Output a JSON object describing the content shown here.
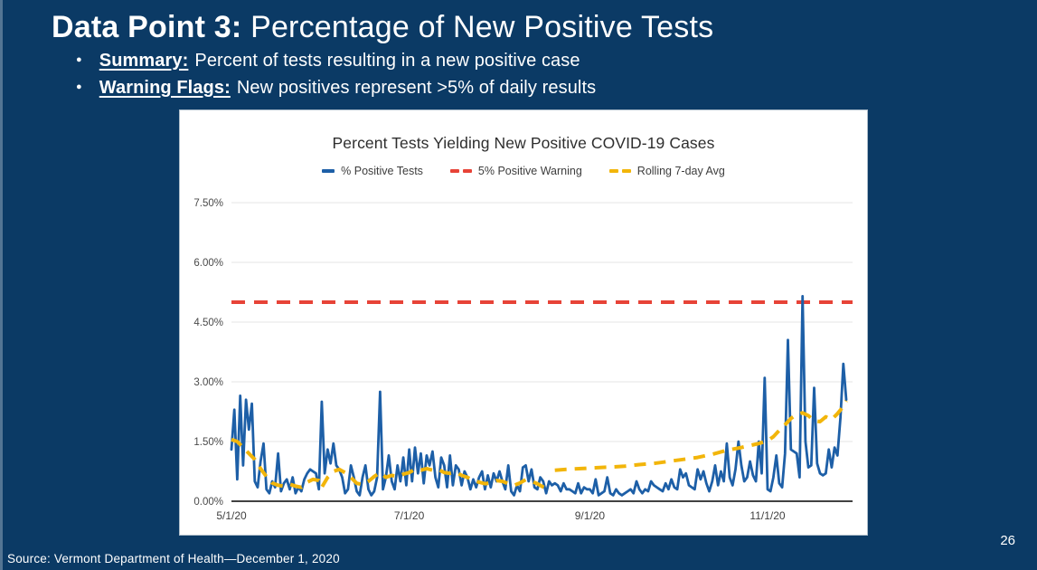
{
  "slide": {
    "title_bold": "Data Point 3:",
    "title_rest": "Percentage of New Positive Tests",
    "bullets": [
      {
        "lead": "Summary:",
        "text": "Percent of tests resulting in a new positive case"
      },
      {
        "lead": "Warning Flags:",
        "text": "New positives represent >5% of daily results"
      }
    ],
    "source": "Source: Vermont Department of Health—December 1, 2020",
    "page_number": "26",
    "background_color": "#0b3a65"
  },
  "chart_data": {
    "type": "line",
    "title": "Percent Tests Yielding New Positive COVID-19 Cases",
    "legend": [
      {
        "label": "% Positive Tests",
        "color": "#1d5fa7",
        "style": "solid"
      },
      {
        "label": "5% Positive Warning",
        "color": "#e74337",
        "style": "dashed"
      },
      {
        "label": "Rolling 7-day Avg",
        "color": "#f2b50a",
        "style": "dashed"
      }
    ],
    "ylim": [
      0,
      7.5
    ],
    "warning_level": 5.0,
    "y_ticks": [
      {
        "value": 0.0,
        "label": "0.00%"
      },
      {
        "value": 1.5,
        "label": "1.50%"
      },
      {
        "value": 3.0,
        "label": "3.00%"
      },
      {
        "value": 4.5,
        "label": "4.50%"
      },
      {
        "value": 6.0,
        "label": "6.00%"
      },
      {
        "value": 7.5,
        "label": "7.50%"
      }
    ],
    "x_ticks": [
      {
        "day": 0,
        "label": "5/1/20"
      },
      {
        "day": 61,
        "label": "7/1/20"
      },
      {
        "day": 123,
        "label": "9/1/20"
      },
      {
        "day": 184,
        "label": "11/1/20"
      }
    ],
    "x_start_date": "5/1/20",
    "x_end_date": "11/28/20",
    "daily_percent_positive": [
      1.3,
      2.3,
      0.55,
      2.65,
      0.9,
      2.55,
      1.8,
      2.45,
      0.5,
      0.35,
      1.0,
      1.45,
      0.3,
      0.2,
      0.5,
      0.35,
      1.2,
      0.25,
      0.45,
      0.55,
      0.3,
      0.6,
      0.2,
      0.35,
      0.25,
      0.55,
      0.7,
      0.8,
      0.75,
      0.7,
      0.3,
      2.5,
      0.7,
      1.3,
      0.95,
      1.45,
      0.9,
      0.8,
      0.6,
      0.2,
      0.3,
      0.9,
      0.6,
      0.25,
      0.15,
      0.6,
      0.9,
      0.3,
      0.15,
      0.25,
      0.6,
      2.75,
      0.3,
      0.6,
      1.15,
      0.5,
      0.3,
      0.9,
      0.5,
      1.1,
      0.4,
      1.3,
      0.5,
      1.35,
      0.7,
      1.2,
      0.45,
      1.15,
      0.9,
      1.25,
      0.6,
      0.35,
      1.1,
      0.9,
      0.35,
      1.15,
      0.4,
      0.9,
      0.8,
      0.4,
      0.75,
      0.6,
      0.3,
      0.55,
      0.35,
      0.6,
      0.75,
      0.3,
      0.65,
      0.35,
      0.7,
      0.5,
      0.75,
      0.5,
      0.3,
      0.9,
      0.25,
      0.15,
      0.4,
      0.25,
      0.85,
      0.9,
      0.5,
      0.8,
      0.35,
      0.3,
      0.6,
      0.5,
      0.2,
      0.5,
      0.4,
      0.45,
      0.4,
      0.25,
      0.45,
      0.3,
      0.3,
      0.25,
      0.2,
      0.45,
      0.2,
      0.35,
      0.3,
      0.3,
      0.2,
      0.55,
      0.15,
      0.2,
      0.25,
      0.6,
      0.2,
      0.15,
      0.3,
      0.2,
      0.15,
      0.2,
      0.25,
      0.3,
      0.2,
      0.5,
      0.3,
      0.2,
      0.3,
      0.25,
      0.5,
      0.4,
      0.35,
      0.3,
      0.25,
      0.45,
      0.3,
      0.55,
      0.35,
      0.3,
      0.8,
      0.6,
      0.7,
      0.4,
      0.35,
      0.3,
      0.8,
      0.55,
      0.75,
      0.45,
      0.25,
      0.5,
      0.9,
      0.4,
      0.75,
      0.5,
      1.45,
      0.6,
      0.4,
      0.8,
      1.5,
      0.9,
      0.5,
      0.6,
      1.0,
      0.65,
      0.5,
      1.5,
      0.7,
      3.1,
      0.3,
      0.25,
      0.6,
      1.15,
      0.45,
      0.35,
      1.2,
      4.05,
      1.3,
      1.25,
      1.2,
      0.6,
      5.15,
      1.5,
      0.85,
      0.9,
      2.85,
      0.95,
      0.7,
      0.65,
      0.7,
      1.3,
      0.85,
      1.35,
      1.15,
      2.1,
      3.45,
      2.55
    ],
    "rolling_avg_segments": [
      [
        [
          0,
          1.55
        ],
        [
          2,
          1.5
        ],
        [
          4,
          1.35
        ],
        [
          6,
          1.2
        ],
        [
          8,
          1.05
        ],
        [
          10,
          0.82
        ],
        [
          12,
          0.62
        ],
        [
          14,
          0.46
        ],
        [
          16,
          0.4
        ],
        [
          18,
          0.38
        ],
        [
          20,
          0.43
        ],
        [
          22,
          0.38
        ],
        [
          24,
          0.35
        ],
        [
          26,
          0.48
        ],
        [
          28,
          0.55
        ],
        [
          30,
          0.52
        ],
        [
          31,
          0.35
        ],
        [
          33,
          0.6
        ],
        [
          35,
          0.75
        ],
        [
          37,
          0.8
        ],
        [
          39,
          0.72
        ],
        [
          41,
          0.6
        ],
        [
          43,
          0.45
        ],
        [
          45,
          0.42
        ],
        [
          47,
          0.5
        ],
        [
          49,
          0.62
        ],
        [
          51,
          0.72
        ],
        [
          53,
          0.6
        ],
        [
          55,
          0.65
        ],
        [
          57,
          0.62
        ],
        [
          59,
          0.68
        ],
        [
          61,
          0.72
        ],
        [
          63,
          0.8
        ],
        [
          65,
          0.78
        ],
        [
          67,
          0.82
        ],
        [
          69,
          0.78
        ],
        [
          71,
          0.8
        ],
        [
          73,
          0.72
        ],
        [
          75,
          0.7
        ],
        [
          77,
          0.73
        ],
        [
          79,
          0.65
        ],
        [
          81,
          0.6
        ],
        [
          83,
          0.52
        ],
        [
          85,
          0.48
        ],
        [
          87,
          0.44
        ],
        [
          89,
          0.46
        ],
        [
          91,
          0.52
        ],
        [
          93,
          0.5
        ],
        [
          95,
          0.44
        ],
        [
          97,
          0.4
        ],
        [
          99,
          0.46
        ],
        [
          101,
          0.54
        ],
        [
          103,
          0.5
        ],
        [
          105,
          0.44
        ],
        [
          107,
          0.36
        ],
        [
          109,
          0.3
        ]
      ],
      [
        [
          111,
          0.78
        ],
        [
          115,
          0.8
        ],
        [
          120,
          0.82
        ],
        [
          125,
          0.84
        ],
        [
          130,
          0.86
        ],
        [
          135,
          0.88
        ],
        [
          140,
          0.92
        ],
        [
          145,
          0.95
        ],
        [
          150,
          1.0
        ],
        [
          155,
          1.05
        ],
        [
          160,
          1.1
        ],
        [
          165,
          1.18
        ],
        [
          170,
          1.28
        ],
        [
          175,
          1.35
        ],
        [
          178,
          1.4
        ],
        [
          181,
          1.45
        ],
        [
          184,
          1.52
        ],
        [
          186,
          1.62
        ],
        [
          188,
          1.78
        ],
        [
          190,
          1.92
        ],
        [
          192,
          2.08
        ],
        [
          194,
          2.18
        ],
        [
          196,
          2.22
        ],
        [
          198,
          2.15
        ],
        [
          200,
          2.02
        ],
        [
          202,
          2.0
        ],
        [
          204,
          2.12
        ],
        [
          206,
          2.05
        ],
        [
          208,
          2.2
        ],
        [
          210,
          2.38
        ],
        [
          211,
          2.52
        ]
      ]
    ],
    "grid": true,
    "legend_position": "top"
  }
}
